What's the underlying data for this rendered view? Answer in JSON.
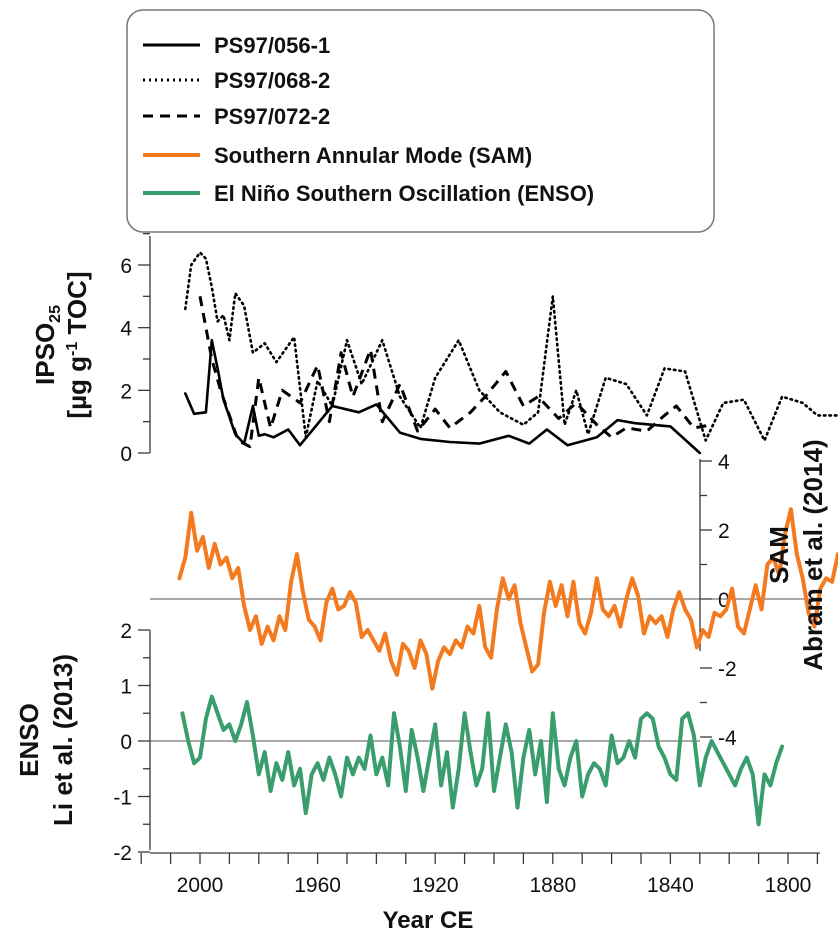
{
  "chart_data": [
    {
      "type": "line",
      "panel": "ipso25",
      "ylabel": [
        "IPSO25",
        "[µg g-1 TOC]"
      ],
      "ylim": [
        0,
        7
      ],
      "yticks": [
        "0",
        "2",
        "4",
        "6"
      ],
      "series": [
        {
          "name": "PS97/056-1",
          "style": "solid",
          "x": [
            2005,
            2002,
            1998,
            1996,
            1994,
            1992,
            1988,
            1985,
            1982,
            1980,
            1978,
            1975,
            1970,
            1966,
            1962,
            1955,
            1946,
            1940,
            1932,
            1925,
            1915,
            1905,
            1895,
            1888,
            1882,
            1875,
            1865,
            1858,
            1852,
            1846,
            1840,
            1830
          ],
          "y": [
            1.9,
            1.25,
            1.3,
            3.6,
            2.7,
            1.7,
            0.6,
            0.3,
            1.5,
            0.55,
            0.6,
            0.5,
            0.75,
            0.25,
            0.7,
            1.5,
            1.3,
            1.55,
            0.65,
            0.45,
            0.35,
            0.3,
            0.55,
            0.3,
            0.75,
            0.25,
            0.5,
            1.05,
            0.95,
            0.9,
            0.85,
            0.0
          ]
        },
        {
          "name": "PS97/068-2",
          "style": "dotted",
          "x": [
            2005,
            2003,
            2000,
            1998,
            1996,
            1994,
            1992,
            1990,
            1988,
            1985,
            1982,
            1978,
            1974,
            1968,
            1964,
            1960,
            1955,
            1950,
            1945,
            1938,
            1932,
            1925,
            1920,
            1912,
            1905,
            1898,
            1890,
            1885,
            1880,
            1876,
            1872,
            1868,
            1862,
            1855,
            1848,
            1842,
            1835,
            1828,
            1822,
            1815,
            1808,
            1802,
            1795,
            1790,
            1782
          ],
          "y": [
            4.6,
            6.0,
            6.4,
            6.2,
            5.3,
            4.2,
            4.4,
            3.6,
            5.1,
            4.7,
            3.2,
            3.5,
            2.9,
            3.7,
            0.5,
            2.3,
            1.5,
            3.6,
            2.2,
            3.6,
            1.8,
            0.8,
            2.4,
            3.6,
            2.0,
            1.3,
            0.9,
            1.3,
            5.0,
            0.9,
            2.0,
            0.6,
            2.4,
            2.2,
            1.2,
            2.7,
            2.6,
            0.4,
            1.6,
            1.7,
            0.4,
            1.8,
            1.6,
            1.2,
            1.2
          ]
        },
        {
          "name": "PS97/072-2",
          "style": "dashed",
          "x": [
            2000,
            1998,
            1996,
            1993,
            1990,
            1987,
            1983,
            1980,
            1976,
            1972,
            1966,
            1960,
            1956,
            1952,
            1948,
            1942,
            1938,
            1932,
            1926,
            1920,
            1915,
            1908,
            1903,
            1896,
            1890,
            1885,
            1878,
            1872,
            1865,
            1860,
            1855,
            1848,
            1842,
            1838,
            1832,
            1826
          ],
          "y": [
            5.0,
            4.0,
            3.0,
            2.0,
            1.2,
            0.4,
            0.2,
            2.4,
            0.8,
            2.0,
            1.6,
            2.8,
            1.0,
            3.2,
            1.8,
            3.3,
            1.0,
            2.2,
            0.7,
            1.4,
            0.8,
            1.3,
            1.8,
            2.6,
            1.5,
            1.8,
            1.1,
            1.6,
            0.9,
            0.5,
            0.8,
            0.7,
            1.2,
            1.5,
            0.8,
            0.9
          ]
        }
      ]
    },
    {
      "type": "line",
      "panel": "sam",
      "ylabel": [
        "SAM",
        "Abram et al. (2014)"
      ],
      "ylim": [
        -4,
        4
      ],
      "yticks": [
        "4",
        "2",
        "0",
        "-2",
        "-4"
      ],
      "series": [
        {
          "name": "Southern Annular Mode (SAM)",
          "style": "solid",
          "x": [
            2007,
            2005,
            2003,
            2001,
            1999,
            1997,
            1995,
            1993,
            1991,
            1989,
            1987,
            1985,
            1983,
            1981,
            1979,
            1977,
            1975,
            1973,
            1971,
            1969,
            1967,
            1965,
            1963,
            1961,
            1959,
            1957,
            1955,
            1953,
            1951,
            1949,
            1947,
            1945,
            1943,
            1941,
            1939,
            1937,
            1935,
            1933,
            1931,
            1929,
            1927,
            1925,
            1923,
            1921,
            1919,
            1917,
            1915,
            1913,
            1911,
            1909,
            1907,
            1905,
            1903,
            1901,
            1899,
            1897,
            1895,
            1893,
            1891,
            1889,
            1887,
            1885,
            1883,
            1881,
            1879,
            1877,
            1875,
            1873,
            1871,
            1869,
            1867,
            1865,
            1863,
            1861,
            1859,
            1857,
            1855,
            1853,
            1851,
            1849,
            1847,
            1845,
            1843,
            1841,
            1839,
            1837,
            1835,
            1833,
            1831,
            1829,
            1827,
            1825,
            1823,
            1821,
            1819,
            1817,
            1815,
            1813,
            1811,
            1809,
            1807,
            1805,
            1803,
            1801,
            1799,
            1797,
            1795,
            1793,
            1791,
            1789,
            1787,
            1785,
            1783,
            1781,
            1779
          ],
          "y": [
            0.6,
            1.2,
            2.5,
            1.4,
            1.8,
            0.9,
            1.6,
            1.0,
            1.2,
            0.6,
            0.9,
            -0.2,
            -0.9,
            -0.5,
            -1.3,
            -0.8,
            -1.2,
            -0.5,
            -0.9,
            0.5,
            1.3,
            0.2,
            -0.6,
            -0.8,
            -1.2,
            -0.1,
            0.3,
            -0.3,
            -0.2,
            0.2,
            -0.1,
            -1.1,
            -0.9,
            -1.2,
            -1.5,
            -1.0,
            -1.8,
            -2.2,
            -1.3,
            -1.5,
            -2.0,
            -1.2,
            -1.6,
            -2.6,
            -1.8,
            -1.4,
            -1.6,
            -1.2,
            -1.4,
            -0.8,
            -1.0,
            -0.2,
            -1.4,
            -1.7,
            -0.3,
            0.6,
            0.0,
            0.4,
            -0.7,
            -1.4,
            -2.1,
            -1.9,
            -0.4,
            0.5,
            -0.2,
            0.4,
            -0.5,
            0.5,
            -0.7,
            -1.0,
            -0.4,
            0.6,
            -0.3,
            -0.5,
            -0.2,
            -0.8,
            0.0,
            0.6,
            0.1,
            -1.0,
            -0.5,
            -0.7,
            -0.5,
            -1.1,
            -0.3,
            0.2,
            -0.3,
            -0.6,
            -1.4,
            -0.9,
            -1.1,
            -0.4,
            -0.5,
            -0.3,
            0.3,
            -0.8,
            -1.0,
            -0.3,
            0.4,
            -0.3,
            1.0,
            1.2,
            0.7,
            1.9,
            2.6,
            1.3,
            0.6,
            -0.4,
            -0.8,
            0.3,
            0.6,
            0.5,
            1.3,
            0.8,
            -0.3
          ]
        }
      ]
    },
    {
      "type": "line",
      "panel": "enso",
      "ylabel": [
        "ENSO",
        "Li et al. (2013)"
      ],
      "ylim": [
        -2,
        2
      ],
      "yticks": [
        "2",
        "1",
        "0",
        "-1",
        "-2"
      ],
      "series": [
        {
          "name": "El Niño Southern Oscillation (ENSO)",
          "style": "solid",
          "x": [
            2006,
            2004,
            2002,
            2000,
            1998,
            1996,
            1994,
            1992,
            1990,
            1988,
            1986,
            1984,
            1982,
            1980,
            1978,
            1976,
            1974,
            1972,
            1970,
            1968,
            1966,
            1964,
            1962,
            1960,
            1958,
            1956,
            1954,
            1952,
            1950,
            1948,
            1946,
            1944,
            1942,
            1940,
            1938,
            1936,
            1934,
            1932,
            1930,
            1928,
            1926,
            1924,
            1922,
            1920,
            1918,
            1916,
            1914,
            1912,
            1910,
            1908,
            1906,
            1904,
            1902,
            1900,
            1898,
            1896,
            1894,
            1892,
            1890,
            1888,
            1886,
            1884,
            1882,
            1880,
            1878,
            1876,
            1874,
            1872,
            1870,
            1868,
            1866,
            1864,
            1862,
            1860,
            1858,
            1856,
            1854,
            1852,
            1850,
            1848,
            1846,
            1844,
            1842,
            1840,
            1838,
            1836,
            1834,
            1832,
            1830,
            1828,
            1826,
            1824,
            1822,
            1820,
            1818,
            1816,
            1814,
            1812,
            1810,
            1808,
            1806,
            1804,
            1802
          ],
          "y": [
            0.5,
            0.0,
            -0.4,
            -0.3,
            0.4,
            0.8,
            0.5,
            0.2,
            0.3,
            0.0,
            0.3,
            0.7,
            0.1,
            -0.6,
            -0.2,
            -0.9,
            -0.4,
            -0.7,
            -0.2,
            -0.8,
            -0.5,
            -1.3,
            -0.6,
            -0.4,
            -0.7,
            -0.3,
            -0.6,
            -1.0,
            -0.3,
            -0.6,
            -0.3,
            -0.5,
            0.1,
            -0.6,
            -0.3,
            -0.8,
            0.5,
            -0.1,
            -0.9,
            0.2,
            -0.3,
            -0.9,
            -0.3,
            0.3,
            -0.8,
            -0.2,
            -1.2,
            -0.5,
            0.5,
            -0.2,
            -0.8,
            -0.5,
            0.5,
            -0.9,
            -0.3,
            0.3,
            -0.2,
            -1.2,
            -0.3,
            0.2,
            -0.6,
            0.0,
            -1.1,
            0.5,
            -0.5,
            -0.8,
            -0.3,
            0.0,
            -1.0,
            -0.6,
            -0.4,
            -0.5,
            -0.8,
            0.1,
            -0.4,
            -0.3,
            0.0,
            -0.3,
            0.4,
            0.5,
            0.4,
            -0.1,
            -0.3,
            -0.6,
            -0.7,
            0.4,
            0.5,
            0.1,
            -0.8,
            -0.3,
            0.0,
            -0.2,
            -0.4,
            -0.6,
            -0.8,
            -0.5,
            -0.3,
            -0.6,
            -1.5,
            -0.6,
            -0.8,
            -0.4,
            -0.1
          ]
        }
      ]
    }
  ],
  "xaxis": {
    "label": "Year CE",
    "range": [
      2020,
      1780
    ],
    "ticklabels": [
      "2000",
      "1960",
      "1920",
      "1880",
      "1840",
      "1800"
    ]
  },
  "legend": {
    "position": "top",
    "entries": [
      {
        "label": "PS97/056-1",
        "style": "solid",
        "color": "#000000"
      },
      {
        "label": "PS97/068-2",
        "style": "dotted",
        "color": "#000000"
      },
      {
        "label": "PS97/072-2",
        "style": "dashed",
        "color": "#000000"
      },
      {
        "label": "Southern Annular Mode (SAM)",
        "style": "solid",
        "color": "#f47a20"
      },
      {
        "label": "El Niño Southern Oscillation (ENSO)",
        "style": "solid",
        "color": "#3a9d6e"
      }
    ]
  },
  "colors": {
    "black": "#000000",
    "sam": "#f47a20",
    "enso": "#3a9d6e"
  }
}
